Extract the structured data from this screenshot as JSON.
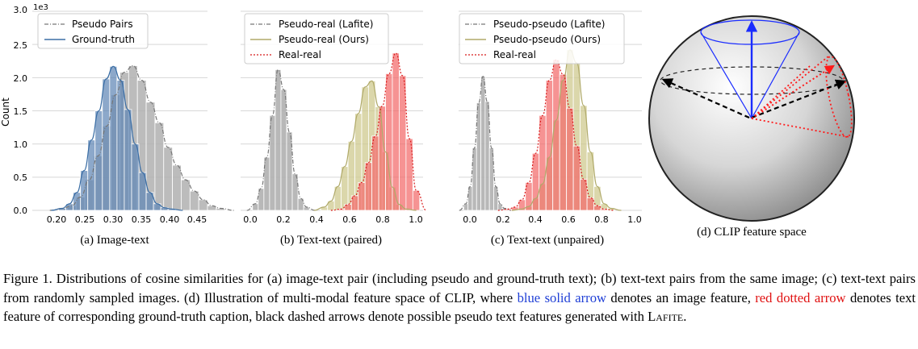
{
  "panels": [
    {
      "sublabel": "(a) Image-text",
      "ylabel": "Count",
      "yexp": "1e3",
      "yticks": [
        "0.0",
        "0.5",
        "1.0",
        "1.5",
        "2.0",
        "2.5",
        "3.0"
      ],
      "xticks": [
        "0.20",
        "0.25",
        "0.30",
        "0.35",
        "0.40",
        "0.45"
      ],
      "legend": [
        "Pseudo Pairs",
        "Ground-truth"
      ]
    },
    {
      "sublabel": "(b) Text-text (paired)",
      "xticks": [
        "0.0",
        "0.2",
        "0.4",
        "0.6",
        "0.8",
        "1.0"
      ],
      "legend": [
        "Pseudo-real (Lafite)",
        "Pseudo-real (Ours)",
        "Real-real"
      ]
    },
    {
      "sublabel": "(c) Text-text (unpaired)",
      "xticks": [
        "0.0",
        "0.2",
        "0.4",
        "0.6",
        "0.8",
        "1.0"
      ],
      "legend": [
        "Pseudo-pseudo (Lafite)",
        "Pseudo-pseudo (Ours)",
        "Real-real"
      ]
    },
    {
      "sublabel": "(d) CLIP feature space"
    }
  ],
  "colors": {
    "gray": "#b0b0b0",
    "gray_line": "#777777",
    "blue": "#5f87b5",
    "blue_line": "#3b6ea5",
    "olive": "#cfc98f",
    "olive_line": "#b0aa6a",
    "red": "#f26a6a",
    "red_line": "#d81b1b",
    "arrow_blue": "#1a2cff",
    "arrow_red": "#ff1a1a"
  },
  "caption": {
    "p1": "Figure 1. Distributions of cosine similarities for (a) image-text pair (including pseudo and ground-truth text); (b) text-text pairs from the same image; (c) text-text pairs from randomly sampled images. (d) Illustration of multi-modal feature space of CLIP, where ",
    "blue": "blue solid arrow",
    "p2": " denotes an image feature, ",
    "red": "red dotted arrow",
    "p3": " denotes text feature of corresponding ground-truth caption, black dashed arrows denote possible pseudo text features generated with ",
    "lafite": "Lafite",
    "p4": "."
  },
  "chart_data": [
    {
      "type": "bar",
      "title": "",
      "xlabel": "",
      "ylabel": "Count",
      "xlim": [
        0.16,
        0.46
      ],
      "ylim": [
        0,
        3.0
      ],
      "y_scale_note": "1e3",
      "grid": "y",
      "legend_position": "top-left",
      "series": [
        {
          "name": "Pseudo Pairs",
          "bin_start": 0.205,
          "bin_width": 0.015,
          "values": [
            0.03,
            0.07,
            0.2,
            0.46,
            0.82,
            1.27,
            1.74,
            2.08,
            2.18,
            1.96,
            1.63,
            1.32,
            0.95,
            0.68,
            0.46,
            0.29,
            0.16,
            0.07,
            0.03
          ]
        },
        {
          "name": "Ground-truth",
          "bin_start": 0.205,
          "bin_width": 0.0125,
          "values": [
            0.03,
            0.1,
            0.27,
            0.6,
            1.06,
            1.5,
            1.98,
            2.17,
            1.96,
            1.52,
            1.0,
            0.57,
            0.27,
            0.1,
            0.04,
            0.02
          ]
        }
      ]
    },
    {
      "type": "bar",
      "title": "",
      "xlabel": "",
      "ylabel": "",
      "xlim": [
        -0.05,
        1.02
      ],
      "ylim": [
        0,
        3.0
      ],
      "grid": "y",
      "legend_position": "top-left",
      "series": [
        {
          "name": "Pseudo-real (Lafite)",
          "bin_start": 0.02,
          "bin_width": 0.0333,
          "values": [
            0.1,
            0.33,
            0.8,
            1.43,
            2.12,
            1.82,
            1.18,
            0.55,
            0.18,
            0.05
          ]
        },
        {
          "name": "Pseudo-real (Ours)",
          "bin_start": 0.42,
          "bin_width": 0.04,
          "values": [
            0.05,
            0.14,
            0.36,
            0.66,
            1.04,
            1.46,
            1.86,
            1.95,
            1.56,
            0.88,
            0.35,
            0.09,
            0.02
          ]
        },
        {
          "name": "Real-real",
          "bin_start": 0.52,
          "bin_width": 0.04,
          "values": [
            0.02,
            0.09,
            0.22,
            0.42,
            0.72,
            1.12,
            1.57,
            2.06,
            2.37,
            2.03,
            1.08,
            0.3
          ]
        }
      ]
    },
    {
      "type": "bar",
      "title": "",
      "xlabel": "",
      "ylabel": "",
      "xlim": [
        -0.05,
        1.02
      ],
      "ylim": [
        0,
        3.0
      ],
      "grid": "y",
      "legend_position": "top-left",
      "series": [
        {
          "name": "Pseudo-pseudo (Lafite)",
          "bin_start": -0.02,
          "bin_width": 0.025,
          "values": [
            0.1,
            0.36,
            0.94,
            1.62,
            2.02,
            1.64,
            0.94,
            0.36,
            0.1,
            0.03
          ]
        },
        {
          "name": "Pseudo-pseudo (Ours)",
          "bin_start": 0.3,
          "bin_width": 0.04,
          "values": [
            0.02,
            0.06,
            0.18,
            0.4,
            0.8,
            1.36,
            1.96,
            2.42,
            2.22,
            1.58,
            0.88,
            0.36,
            0.1,
            0.03
          ]
        },
        {
          "name": "Real-real",
          "bin_start": 0.22,
          "bin_width": 0.04,
          "values": [
            0.02,
            0.05,
            0.16,
            0.42,
            0.86,
            1.43,
            1.96,
            2.27,
            2.05,
            1.54,
            0.97,
            0.47,
            0.19,
            0.07,
            0.02
          ]
        }
      ]
    }
  ]
}
